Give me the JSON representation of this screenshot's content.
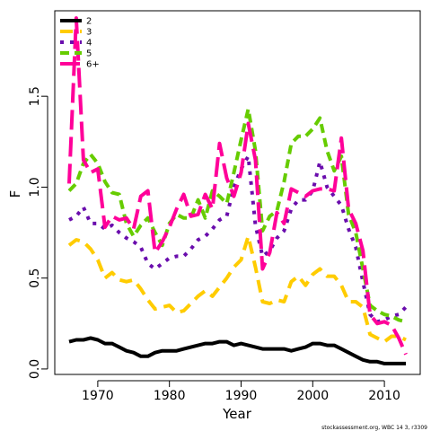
{
  "chart_data": {
    "type": "line",
    "title": "",
    "xlabel": "Year",
    "ylabel": "F",
    "xlim": [
      1964,
      2015
    ],
    "ylim": [
      -0.03,
      1.97
    ],
    "xticks": [
      1970,
      1980,
      1990,
      2000,
      2010
    ],
    "yticks": [
      0.0,
      0.5,
      1.0,
      1.5
    ],
    "ytick_labels": [
      "0.0",
      "0.5",
      "1.0",
      "1.5"
    ],
    "grid": false,
    "legend_position": "top-left",
    "footer": "stockassessment.org, WBC 14 3, r3309",
    "x": [
      1966,
      1967,
      1968,
      1969,
      1970,
      1971,
      1972,
      1973,
      1974,
      1975,
      1976,
      1977,
      1978,
      1979,
      1980,
      1981,
      1982,
      1983,
      1984,
      1985,
      1986,
      1987,
      1988,
      1989,
      1990,
      1991,
      1992,
      1993,
      1994,
      1995,
      1996,
      1997,
      1998,
      1999,
      2000,
      2001,
      2002,
      2003,
      2004,
      2005,
      2006,
      2007,
      2008,
      2009,
      2010,
      2011,
      2012,
      2013
    ],
    "series": [
      {
        "name": "2",
        "color": "#000000",
        "dash": "solid",
        "values": [
          0.15,
          0.16,
          0.16,
          0.17,
          0.16,
          0.14,
          0.14,
          0.12,
          0.1,
          0.09,
          0.07,
          0.07,
          0.09,
          0.1,
          0.1,
          0.1,
          0.11,
          0.12,
          0.13,
          0.14,
          0.14,
          0.15,
          0.15,
          0.13,
          0.14,
          0.13,
          0.12,
          0.11,
          0.11,
          0.11,
          0.11,
          0.1,
          0.11,
          0.12,
          0.14,
          0.14,
          0.13,
          0.13,
          0.11,
          0.09,
          0.07,
          0.05,
          0.04,
          0.04,
          0.03,
          0.03,
          0.03,
          0.03
        ]
      },
      {
        "name": "3",
        "color": "#FFCC00",
        "dash": "14,8",
        "values": [
          0.68,
          0.71,
          0.7,
          0.66,
          0.6,
          0.5,
          0.53,
          0.49,
          0.48,
          0.49,
          0.44,
          0.38,
          0.33,
          0.34,
          0.35,
          0.31,
          0.32,
          0.36,
          0.4,
          0.43,
          0.4,
          0.45,
          0.5,
          0.56,
          0.6,
          0.73,
          0.56,
          0.37,
          0.36,
          0.38,
          0.37,
          0.48,
          0.51,
          0.46,
          0.52,
          0.55,
          0.51,
          0.51,
          0.46,
          0.37,
          0.37,
          0.34,
          0.19,
          0.17,
          0.15,
          0.18,
          0.18,
          0.16
        ]
      },
      {
        "name": "4",
        "color": "#6A0DAD",
        "dash": "4,7",
        "values": [
          0.82,
          0.84,
          0.89,
          0.8,
          0.8,
          0.77,
          0.79,
          0.75,
          0.72,
          0.7,
          0.67,
          0.58,
          0.55,
          0.58,
          0.61,
          0.62,
          0.62,
          0.66,
          0.71,
          0.73,
          0.77,
          0.82,
          0.84,
          1.0,
          1.1,
          1.17,
          0.79,
          0.62,
          0.65,
          0.72,
          0.76,
          0.88,
          0.93,
          0.93,
          0.98,
          1.14,
          1.0,
          0.95,
          0.9,
          0.77,
          0.67,
          0.48,
          0.3,
          0.26,
          0.27,
          0.29,
          0.3,
          0.34
        ]
      },
      {
        "name": "5",
        "color": "#66CC00",
        "dash": "10,6",
        "values": [
          0.98,
          1.02,
          1.13,
          1.18,
          1.13,
          1.03,
          0.97,
          0.96,
          0.8,
          0.73,
          0.79,
          0.83,
          0.75,
          0.68,
          0.8,
          0.85,
          0.83,
          0.83,
          0.93,
          0.83,
          0.98,
          0.95,
          0.91,
          1.08,
          1.26,
          1.43,
          1.2,
          0.76,
          0.84,
          0.87,
          1.03,
          1.24,
          1.28,
          1.28,
          1.32,
          1.38,
          1.2,
          1.09,
          1.17,
          0.85,
          0.75,
          0.55,
          0.35,
          0.32,
          0.3,
          0.29,
          0.27,
          0.26
        ]
      },
      {
        "name": "6+",
        "color": "#FF0099",
        "dash": "22,8",
        "values": [
          1.02,
          1.93,
          1.15,
          1.08,
          1.1,
          0.78,
          0.84,
          0.82,
          0.83,
          0.77,
          0.95,
          0.98,
          0.64,
          0.7,
          0.78,
          0.88,
          0.96,
          0.84,
          0.85,
          0.96,
          0.88,
          1.24,
          1.05,
          0.95,
          1.08,
          1.35,
          1.15,
          0.55,
          0.64,
          0.86,
          0.8,
          0.99,
          0.97,
          0.95,
          0.98,
          0.99,
          0.99,
          0.98,
          1.27,
          0.88,
          0.8,
          0.65,
          0.3,
          0.25,
          0.26,
          0.24,
          0.17,
          0.08
        ]
      }
    ]
  }
}
